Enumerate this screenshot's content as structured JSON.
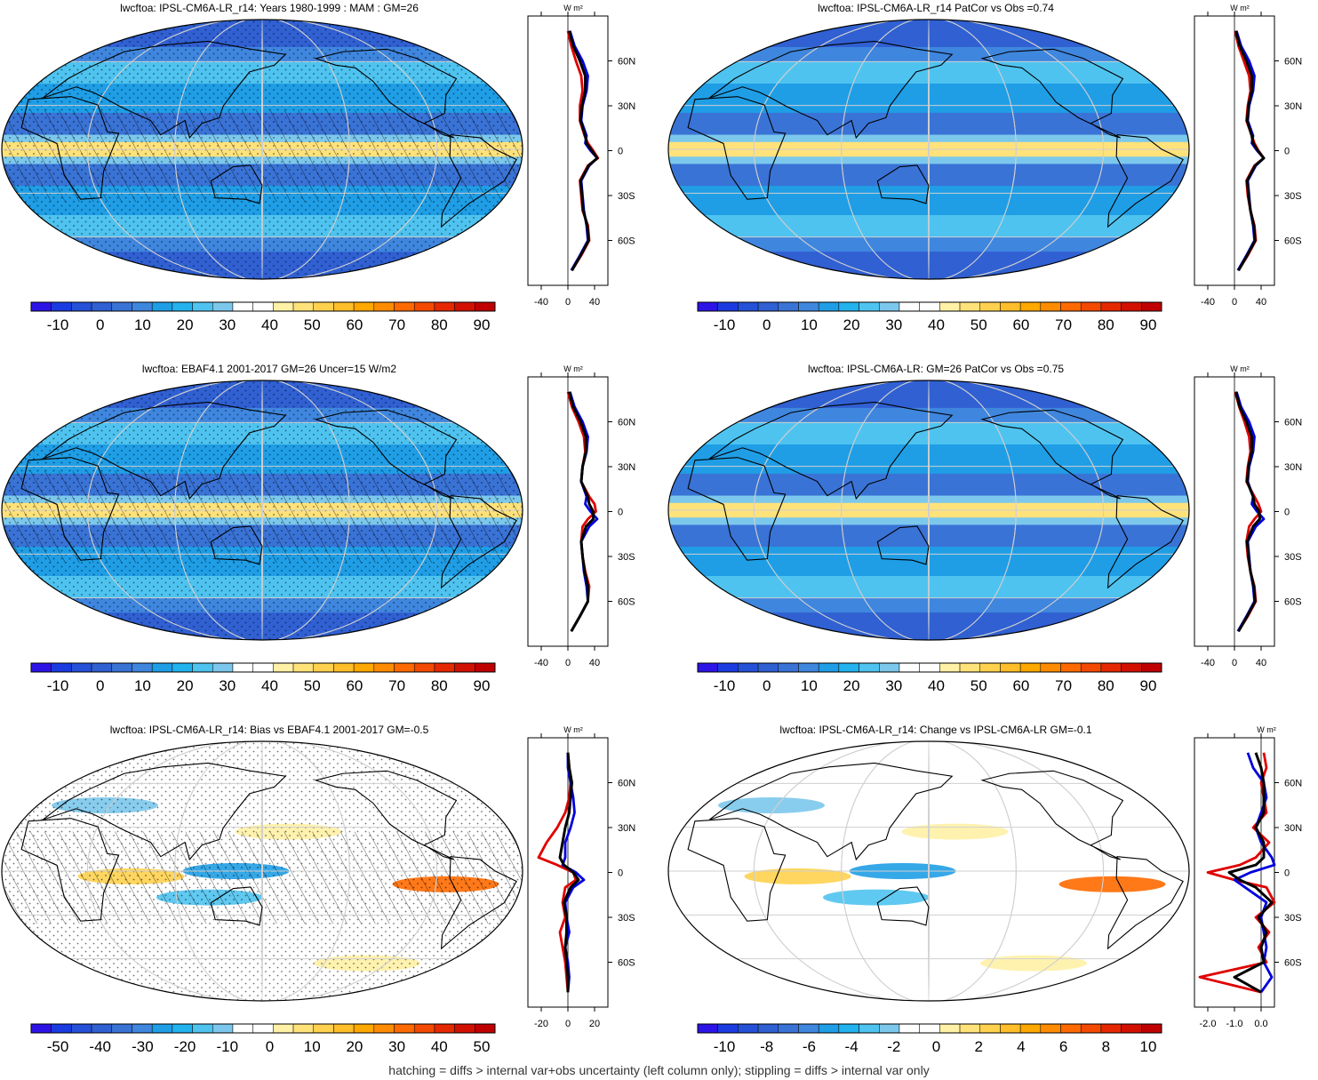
{
  "footnote": "hatching = diffs > internal var+obs uncertainty (left column only); stippling = diffs > internal var only",
  "colors": {
    "obs_line": "#e00000",
    "model_line": "#0000dd",
    "mean_line": "#000000",
    "coast": "#000000",
    "graticule": "#cfcfcf"
  },
  "colorbars": {
    "absolute": {
      "labels": [
        "-10",
        "0",
        "10",
        "20",
        "30",
        "40",
        "50",
        "60",
        "70",
        "80",
        "90"
      ],
      "colors": [
        "#2c14e6",
        "#1a3be0",
        "#2550d8",
        "#3060d2",
        "#3a73d6",
        "#3f86de",
        "#1f9ee6",
        "#22b2ee",
        "#4fc3f0",
        "#7cc8ec",
        "#ffffff",
        "#ffffff",
        "#fff1a6",
        "#ffe27a",
        "#ffd14e",
        "#ffbe2a",
        "#ffa800",
        "#ff8c00",
        "#ff6a00",
        "#f34a00",
        "#e62800",
        "#d21000",
        "#c00000"
      ]
    },
    "bias": {
      "labels": [
        "-50",
        "-40",
        "-30",
        "-20",
        "-10",
        "0",
        "10",
        "20",
        "30",
        "40",
        "50"
      ],
      "colors": [
        "#2c14e6",
        "#1a3be0",
        "#2550d8",
        "#3060d2",
        "#3a73d6",
        "#3f86de",
        "#1f9ee6",
        "#22b2ee",
        "#4fc3f0",
        "#7cc8ec",
        "#ffffff",
        "#ffffff",
        "#fff1a6",
        "#ffe27a",
        "#ffd14e",
        "#ffbe2a",
        "#ffa800",
        "#ff8c00",
        "#ff6a00",
        "#f34a00",
        "#e62800",
        "#d21000",
        "#c00000"
      ]
    },
    "change": {
      "labels": [
        "-10",
        "-8",
        "-6",
        "-4",
        "-2",
        "0",
        "2",
        "4",
        "6",
        "8",
        "10"
      ],
      "colors": [
        "#2c14e6",
        "#1a3be0",
        "#2550d8",
        "#3060d2",
        "#3a73d6",
        "#3f86de",
        "#1f9ee6",
        "#22b2ee",
        "#4fc3f0",
        "#7cc8ec",
        "#ffffff",
        "#ffffff",
        "#fff1a6",
        "#ffe27a",
        "#ffd14e",
        "#ffbe2a",
        "#ffa800",
        "#ff8c00",
        "#ff6a00",
        "#f34a00",
        "#e62800",
        "#d21000",
        "#c00000"
      ]
    }
  },
  "chart_data": [
    {
      "type": "heatmap",
      "title": "lwcftoa: IPSL-CM6A-LR_r14: Years 1980-1999 : MAM : GM=26",
      "projection": "robinson",
      "colorbar": "absolute",
      "hatching": true,
      "stippling": true,
      "zonal_profile": {
        "unit": "W m²",
        "xticks": [
          "-40",
          "0",
          "40"
        ],
        "yticks": [
          "60N",
          "30N",
          "0",
          "30S",
          "60S"
        ],
        "lat": [
          80,
          70,
          60,
          50,
          40,
          30,
          20,
          10,
          5,
          0,
          -5,
          -10,
          -20,
          -30,
          -40,
          -50,
          -60,
          -70,
          -80
        ],
        "series": [
          {
            "name": "",
            "values": [
              0,
              5,
              12,
              20,
              22,
              18,
              18,
              25,
              30,
              38,
              45,
              30,
              18,
              20,
              22,
              30,
              32,
              20,
              6
            ]
          },
          {
            "name": "",
            "values": [
              3,
              10,
              22,
              30,
              28,
              22,
              20,
              28,
              26,
              34,
              44,
              32,
              20,
              22,
              24,
              28,
              30,
              18,
              5
            ]
          },
          {
            "name": "",
            "values": [
              2,
              8,
              18,
              26,
              26,
              21,
              19,
              26,
              28,
              36,
              44,
              31,
              19,
              21,
              23,
              29,
              31,
              19,
              6
            ]
          }
        ]
      }
    },
    {
      "type": "heatmap",
      "title": "lwcftoa: IPSL-CM6A-LR_r14 PatCor vs Obs =0.74",
      "projection": "robinson",
      "colorbar": "absolute",
      "hatching": false,
      "stippling": false,
      "zonal_profile": {
        "unit": "W m²",
        "xticks": [
          "-40",
          "0",
          "40"
        ],
        "yticks": [
          "60N",
          "30N",
          "0",
          "30S",
          "60S"
        ],
        "lat": [
          80,
          70,
          60,
          50,
          40,
          30,
          20,
          10,
          5,
          0,
          -5,
          -10,
          -20,
          -30,
          -40,
          -50,
          -60,
          -70,
          -80
        ],
        "series": [
          {
            "name": "",
            "values": [
              1,
              6,
              14,
              22,
              24,
              20,
              18,
              26,
              30,
              36,
              44,
              30,
              18,
              20,
              24,
              30,
              32,
              20,
              6
            ]
          },
          {
            "name": "",
            "values": [
              3,
              10,
              22,
              30,
              28,
              22,
              20,
              28,
              26,
              34,
              44,
              32,
              20,
              22,
              24,
              28,
              30,
              18,
              5
            ]
          },
          {
            "name": "",
            "values": [
              2,
              8,
              18,
              26,
              26,
              21,
              19,
              26,
              28,
              35,
              44,
              31,
              19,
              21,
              24,
              29,
              31,
              19,
              6
            ]
          }
        ]
      }
    },
    {
      "type": "heatmap",
      "title": "lwcftoa: EBAF4.1 2001-2017 GM=26 Uncer=15 W/m2",
      "projection": "robinson",
      "colorbar": "absolute",
      "hatching": true,
      "stippling": true,
      "zonal_profile": {
        "unit": "W m²",
        "xticks": [
          "-40",
          "0",
          "40"
        ],
        "yticks": [
          "60N",
          "30N",
          "0",
          "30S",
          "60S"
        ],
        "lat": [
          80,
          70,
          60,
          50,
          40,
          30,
          20,
          10,
          5,
          0,
          -5,
          -10,
          -20,
          -30,
          -40,
          -50,
          -60,
          -70,
          -80
        ],
        "series": [
          {
            "name": "",
            "values": [
              0,
              6,
              16,
              24,
              26,
              22,
              20,
              32,
              40,
              42,
              30,
              22,
              20,
              22,
              26,
              32,
              30,
              18,
              5
            ]
          },
          {
            "name": "",
            "values": [
              3,
              10,
              22,
              30,
              28,
              22,
              20,
              28,
              26,
              34,
              44,
              32,
              20,
              22,
              24,
              28,
              30,
              18,
              5
            ]
          },
          {
            "name": "",
            "values": [
              2,
              8,
              19,
              27,
              27,
              22,
              20,
              30,
              32,
              38,
              38,
              27,
              20,
              22,
              25,
              30,
              30,
              18,
              5
            ]
          }
        ]
      }
    },
    {
      "type": "heatmap",
      "title": "lwcftoa: IPSL-CM6A-LR: GM=26 PatCor vs Obs =0.75",
      "projection": "robinson",
      "colorbar": "absolute",
      "hatching": false,
      "stippling": false,
      "zonal_profile": {
        "unit": "W m²",
        "xticks": [
          "-40",
          "0",
          "40"
        ],
        "yticks": [
          "60N",
          "30N",
          "0",
          "30S",
          "60S"
        ],
        "lat": [
          80,
          70,
          60,
          50,
          40,
          30,
          20,
          10,
          5,
          0,
          -5,
          -10,
          -20,
          -30,
          -40,
          -50,
          -60,
          -70,
          -80
        ],
        "series": [
          {
            "name": "",
            "values": [
              1,
              7,
              15,
              22,
              24,
              20,
              18,
              30,
              36,
              40,
              30,
              22,
              18,
              20,
              24,
              30,
              32,
              20,
              6
            ]
          },
          {
            "name": "",
            "values": [
              3,
              10,
              22,
              30,
              28,
              22,
              20,
              28,
              26,
              34,
              44,
              32,
              20,
              22,
              24,
              28,
              30,
              18,
              5
            ]
          },
          {
            "name": "",
            "values": [
              2,
              8,
              18,
              26,
              26,
              21,
              19,
              28,
              30,
              37,
              38,
              28,
              19,
              21,
              24,
              29,
              31,
              19,
              6
            ]
          }
        ]
      }
    },
    {
      "type": "heatmap",
      "title": "lwcftoa: IPSL-CM6A-LR_r14: Bias vs EBAF4.1 2001-2017 GM=-0.5",
      "projection": "robinson",
      "colorbar": "bias",
      "hatching": true,
      "stippling": true,
      "zonal_profile": {
        "unit": "W m²",
        "xticks": [
          "-20",
          "0",
          "20"
        ],
        "yticks": [
          "60N",
          "30N",
          "0",
          "30S",
          "60S"
        ],
        "lat": [
          80,
          70,
          60,
          50,
          40,
          30,
          20,
          10,
          5,
          0,
          -5,
          -10,
          -20,
          -30,
          -40,
          -50,
          -60,
          -70,
          -80
        ],
        "series": [
          {
            "name": "",
            "values": [
              0,
              1,
              2,
              1,
              -2,
              -8,
              -16,
              -22,
              -8,
              4,
              6,
              -2,
              -4,
              -2,
              -6,
              -4,
              -2,
              -1,
              0
            ]
          },
          {
            "name": "",
            "values": [
              0,
              0,
              2,
              4,
              5,
              2,
              -2,
              -2,
              -4,
              6,
              12,
              4,
              -2,
              -1,
              1,
              -2,
              0,
              1,
              0
            ]
          },
          {
            "name": "",
            "values": [
              0,
              1,
              3,
              2,
              1,
              -2,
              -4,
              -6,
              -3,
              4,
              8,
              2,
              -3,
              -1,
              -1,
              -2,
              -1,
              0,
              0
            ]
          }
        ]
      }
    },
    {
      "type": "heatmap",
      "title": "lwcftoa: IPSL-CM6A-LR_r14: Change vs IPSL-CM6A-LR GM=-0.1",
      "projection": "robinson",
      "colorbar": "change",
      "hatching": false,
      "stippling": false,
      "zonal_profile": {
        "unit": "W m²",
        "xticks": [
          "-2.0",
          "-1.0",
          "0.0"
        ],
        "yticks": [
          "60N",
          "30N",
          "0",
          "30S",
          "60S"
        ],
        "lat": [
          80,
          70,
          60,
          50,
          40,
          30,
          20,
          10,
          5,
          0,
          -5,
          -10,
          -20,
          -30,
          -40,
          -50,
          -60,
          -70,
          -80
        ],
        "series": [
          {
            "name": "",
            "values": [
              0.1,
              0.2,
              0.0,
              0.1,
              0.2,
              -0.3,
              0.3,
              -0.2,
              -0.8,
              -2.0,
              -1.0,
              0.2,
              0.5,
              -0.2,
              0.3,
              -0.1,
              0.2,
              -2.3,
              0.0
            ]
          },
          {
            "name": "",
            "values": [
              -0.5,
              -0.3,
              0.1,
              0.2,
              0.0,
              -0.2,
              0.0,
              0.4,
              0.5,
              -0.4,
              -1.0,
              -0.6,
              0.2,
              0.0,
              0.1,
              0.2,
              0.1,
              0.4,
              0.0
            ]
          },
          {
            "name": "",
            "values": [
              -0.2,
              0.0,
              0.1,
              0.1,
              0.1,
              -0.2,
              0.1,
              0.1,
              -0.2,
              -1.2,
              -0.8,
              -0.2,
              0.4,
              -0.1,
              0.2,
              0.0,
              0.1,
              -1.0,
              0.0
            ]
          }
        ]
      }
    }
  ]
}
